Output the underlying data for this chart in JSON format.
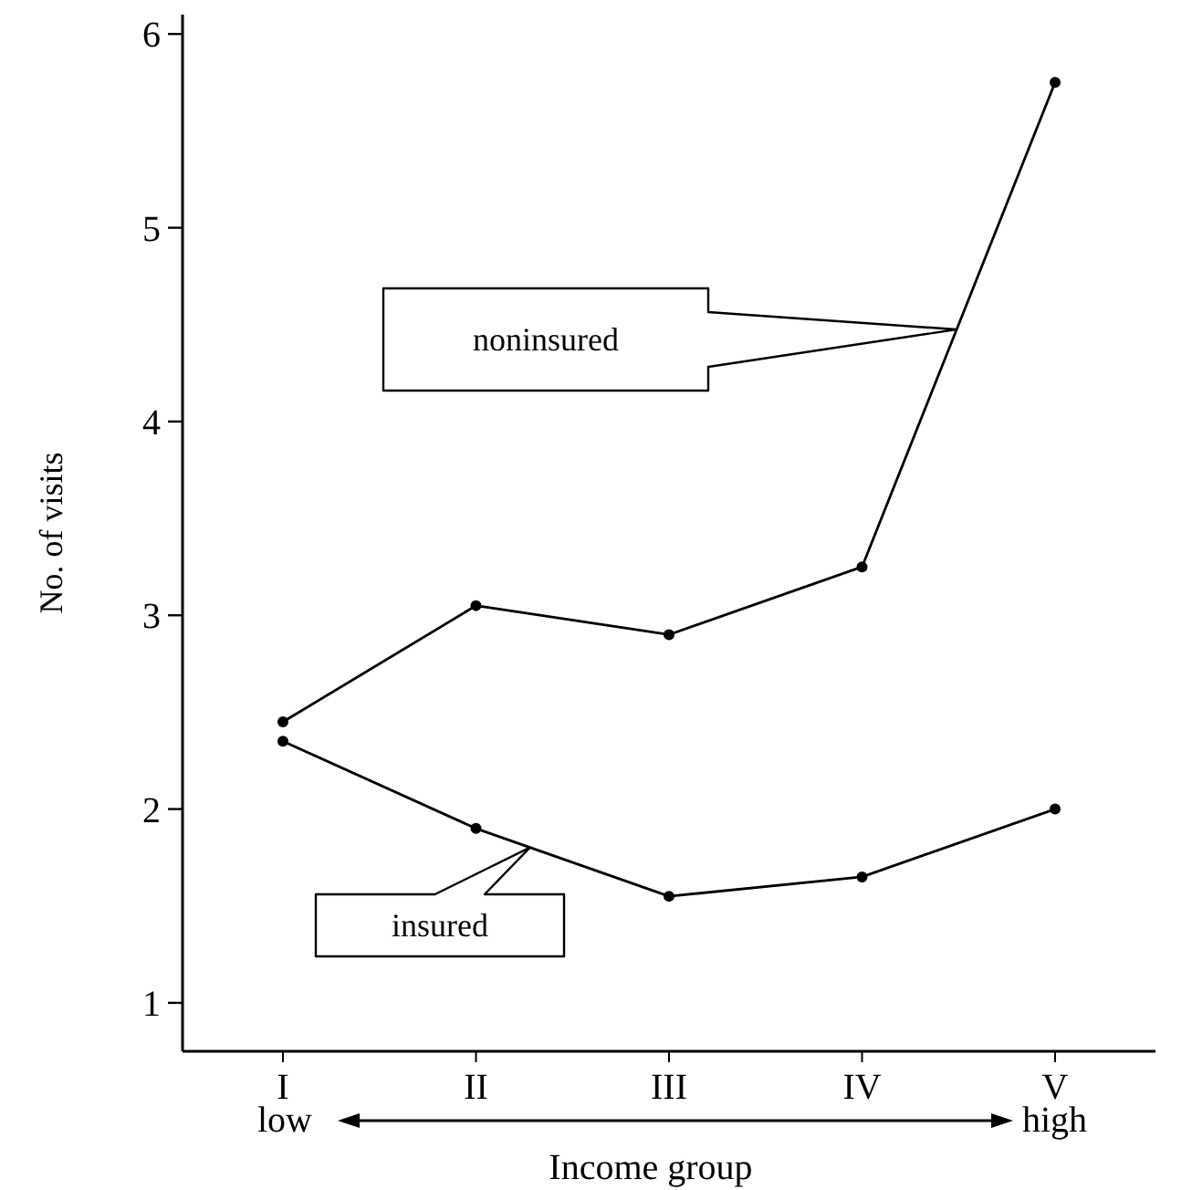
{
  "chart_data": {
    "type": "line",
    "xlabel": "Income group",
    "ylabel": "No. of visits",
    "categories": [
      "I",
      "II",
      "III",
      "IV",
      "V"
    ],
    "series": [
      {
        "name": "noninsured",
        "color": "#000000",
        "values": [
          2.45,
          3.05,
          2.9,
          3.25,
          5.75
        ]
      },
      {
        "name": "insured",
        "color": "#000000",
        "values": [
          2.35,
          1.9,
          1.55,
          1.65,
          2.0
        ]
      }
    ],
    "ylim": [
      0.75,
      6.1
    ],
    "yticks": [
      1,
      2,
      3,
      4,
      5,
      6
    ],
    "grid": false,
    "legend": false,
    "marker": "circle",
    "line_style": "solid",
    "annotations": [
      "low",
      "high"
    ]
  }
}
